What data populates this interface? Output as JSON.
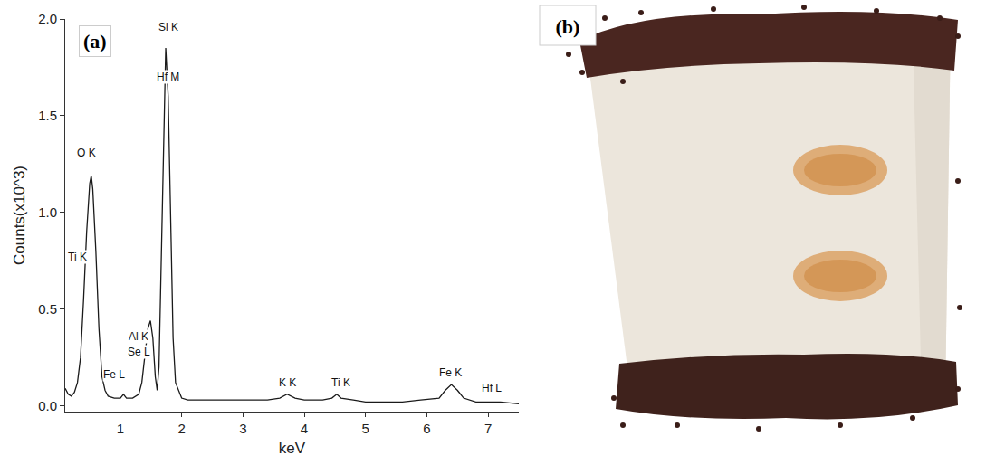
{
  "chart_data": {
    "type": "line",
    "panel_label": "(a)",
    "x_label": "keV",
    "y_label": "Counts(x10^3)",
    "x": [
      0.1,
      0.15,
      0.2,
      0.25,
      0.3,
      0.35,
      0.4,
      0.45,
      0.5,
      0.525,
      0.55,
      0.6,
      0.65,
      0.7,
      0.75,
      0.8,
      0.9,
      1.0,
      1.05,
      1.1,
      1.2,
      1.3,
      1.35,
      1.4,
      1.45,
      1.49,
      1.53,
      1.57,
      1.6,
      1.63,
      1.67,
      1.7,
      1.74,
      1.78,
      1.82,
      1.86,
      1.9,
      2.0,
      2.1,
      2.3,
      2.5,
      2.8,
      3.0,
      3.2,
      3.4,
      3.6,
      3.72,
      3.85,
      4.0,
      4.3,
      4.45,
      4.53,
      4.6,
      4.8,
      5.0,
      5.3,
      5.6,
      5.9,
      6.2,
      6.3,
      6.4,
      6.5,
      6.6,
      6.8,
      7.0,
      7.2,
      7.5
    ],
    "values": [
      0.09,
      0.06,
      0.05,
      0.07,
      0.12,
      0.25,
      0.55,
      0.9,
      1.15,
      1.19,
      1.12,
      0.8,
      0.4,
      0.15,
      0.08,
      0.05,
      0.04,
      0.04,
      0.06,
      0.04,
      0.04,
      0.06,
      0.12,
      0.25,
      0.4,
      0.44,
      0.35,
      0.15,
      0.08,
      0.2,
      0.8,
      1.4,
      1.85,
      1.6,
      0.9,
      0.35,
      0.12,
      0.04,
      0.03,
      0.03,
      0.03,
      0.03,
      0.03,
      0.03,
      0.03,
      0.04,
      0.06,
      0.04,
      0.03,
      0.03,
      0.04,
      0.06,
      0.04,
      0.03,
      0.02,
      0.02,
      0.02,
      0.03,
      0.04,
      0.08,
      0.11,
      0.08,
      0.04,
      0.02,
      0.02,
      0.02,
      0.01
    ],
    "color": "#1a1a1a",
    "xlim": [
      0.1,
      7.5
    ],
    "xticks": [
      1,
      2,
      3,
      4,
      5,
      6,
      7
    ],
    "ylim": [
      -0.03,
      2.0
    ],
    "yticks": [
      {
        "value": 0,
        "label": "0.0"
      },
      0.5,
      {
        "value": 1,
        "label": "1.0"
      },
      1.5,
      {
        "value": 2,
        "label": "2.0"
      }
    ],
    "grid": false,
    "annotations": [
      {
        "text": "O K",
        "x": 0.45,
        "y": 1.31
      },
      {
        "text": "Ti K",
        "x": 0.3,
        "y": 0.77
      },
      {
        "text": "Fe L",
        "x": 0.9,
        "y": 0.16
      },
      {
        "text": "Al K",
        "x": 1.3,
        "y": 0.36
      },
      {
        "text": "Se L",
        "x": 1.3,
        "y": 0.28
      },
      {
        "text": "Si K",
        "x": 1.78,
        "y": 1.96
      },
      {
        "text": "Hf M",
        "x": 1.78,
        "y": 1.7
      },
      {
        "text": "K K",
        "x": 3.72,
        "y": 0.12
      },
      {
        "text": "Ti K",
        "x": 4.6,
        "y": 0.12
      },
      {
        "text": "Fe K",
        "x": 6.38,
        "y": 0.17
      },
      {
        "text": "Hf L",
        "x": 7.05,
        "y": 0.09
      }
    ]
  },
  "photo": {
    "panel_label": "(b)"
  }
}
